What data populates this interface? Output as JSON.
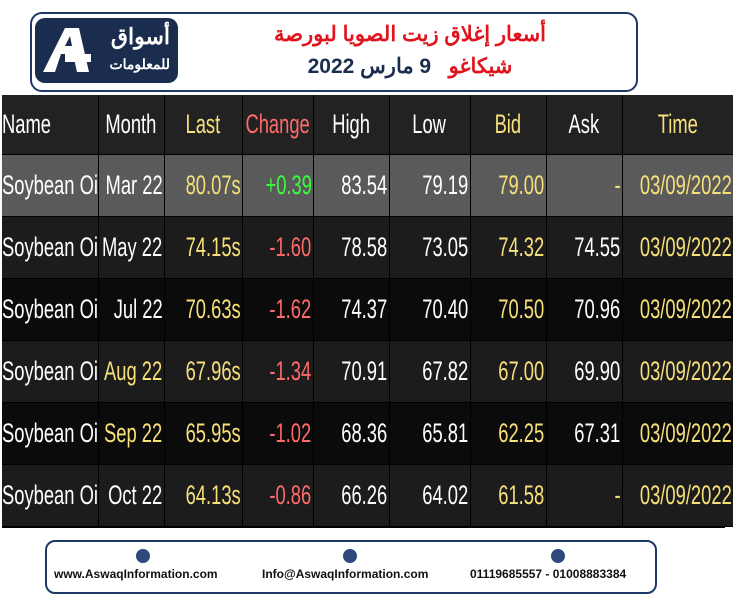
{
  "header": {
    "logo": {
      "line1": "أسواق",
      "line2": "للمعلومات"
    },
    "title_line1": "أسعار إغلاق زيت الصويا لبورصة",
    "title_line2_place": "شيكاغو",
    "title_line2_date": "9 مارس 2022"
  },
  "table": {
    "columns": [
      "Name",
      "Month",
      "Last",
      "Change",
      "High",
      "Low",
      "Bid",
      "Ask",
      "Time"
    ],
    "rows": [
      [
        "Soybean Oil",
        "Mar 22",
        "80.07s",
        "+0.39",
        "83.54",
        "79.19",
        "79.00",
        "-",
        "03/09/2022"
      ],
      [
        "Soybean Oil",
        "May 22",
        "74.15s",
        "-1.60",
        "78.58",
        "73.05",
        "74.32",
        "74.55",
        "03/09/2022"
      ],
      [
        "Soybean Oil",
        "Jul 22",
        "70.63s",
        "-1.62",
        "74.37",
        "70.40",
        "70.50",
        "70.96",
        "03/09/2022"
      ],
      [
        "Soybean Oil",
        "Aug 22",
        "67.96s",
        "-1.34",
        "70.91",
        "67.82",
        "67.00",
        "69.90",
        "03/09/2022"
      ],
      [
        "Soybean Oil",
        "Sep 22",
        "65.95s",
        "-1.02",
        "68.36",
        "65.81",
        "62.25",
        "67.31",
        "03/09/2022"
      ],
      [
        "Soybean Oil",
        "Oct 22",
        "64.13s",
        "-0.86",
        "66.26",
        "64.02",
        "61.58",
        "-",
        "03/09/2022"
      ]
    ]
  },
  "footer": {
    "website": "www.AswaqInformation.com",
    "email": "Info@AswaqInformation.com",
    "phone": "01119685557 - 01008883384"
  }
}
